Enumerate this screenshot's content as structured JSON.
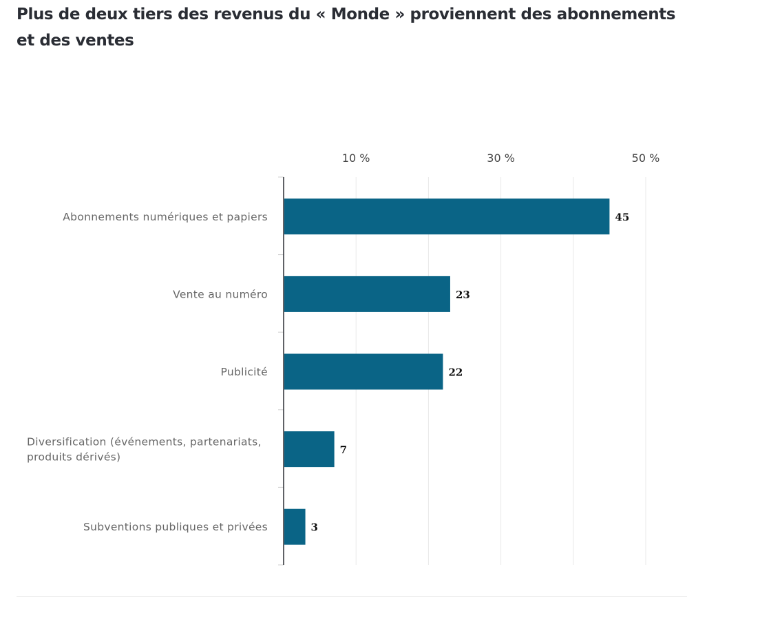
{
  "chart_data": {
    "type": "bar",
    "orientation": "horizontal",
    "title": "Plus de deux tiers des revenus du « Monde » proviennent des abonnements et des ventes",
    "categories": [
      [
        "Abonnements numériques et papiers"
      ],
      [
        "Vente au numéro"
      ],
      [
        "Publicité"
      ],
      [
        "Diversification (événements, partenariats,",
        "produits dérivés)"
      ],
      [
        "Subventions publiques et privées"
      ]
    ],
    "values": [
      45,
      23,
      22,
      7,
      3
    ],
    "value_labels": [
      "45",
      "23",
      "22",
      "7",
      "3"
    ],
    "xlim": [
      0,
      50
    ],
    "x_ticks": [
      0,
      10,
      20,
      30,
      40,
      50
    ],
    "x_tick_labels": [
      {
        "value": 10,
        "label": "10 %"
      },
      {
        "value": 30,
        "label": "30 %"
      },
      {
        "value": 50,
        "label": "50 %"
      }
    ],
    "grid": true,
    "axis_position": "top",
    "colors": {
      "bar": "#0a6486",
      "grid": "#e8e8e8",
      "axis": "#2a2d34",
      "category_text": "#666666",
      "value_text": "#111111",
      "tick_text": "#444444"
    }
  }
}
